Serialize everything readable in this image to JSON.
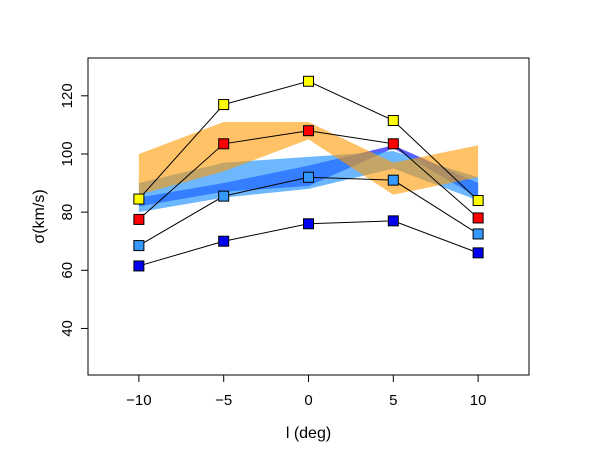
{
  "chart_data": {
    "type": "line",
    "title": "",
    "xlabel": "l (deg)",
    "ylabel": "σ(km/s)",
    "xlim": [
      -13,
      13
    ],
    "ylim": [
      24,
      133
    ],
    "x_ticks": [
      -10,
      -5,
      0,
      5,
      10
    ],
    "x_tick_labels": [
      "−10",
      "−5",
      "0",
      "5",
      "10"
    ],
    "y_ticks": [
      40,
      60,
      80,
      100,
      120
    ],
    "y_tick_labels": [
      "40",
      "60",
      "80",
      "100",
      "120"
    ],
    "grid": false,
    "legend": "none",
    "x": [
      -10,
      -5,
      0,
      5,
      10
    ],
    "series": [
      {
        "color": "#ffff00",
        "values": [
          84.5,
          117,
          125,
          111.5,
          84
        ]
      },
      {
        "color": "#ff0000",
        "values": [
          77.5,
          103.5,
          108,
          103.5,
          78
        ]
      },
      {
        "color": "#3399ff",
        "values": [
          68.5,
          85.5,
          92,
          91,
          72.5
        ]
      },
      {
        "color": "#0000ee",
        "values": [
          61.5,
          70,
          76,
          77,
          66
        ]
      }
    ],
    "bands": [
      {
        "color": "#3333ff",
        "opacity": 0.8,
        "lower": [
          82,
          87,
          89,
          102,
          85
        ],
        "upper": [
          85,
          90,
          96,
          103,
          90
        ]
      },
      {
        "color": "#1e90ff",
        "opacity": 0.65,
        "lower": [
          80,
          85,
          88,
          95,
          84
        ],
        "upper": [
          90,
          97,
          99,
          101,
          92
        ]
      },
      {
        "color": "#ff9900",
        "opacity": 0.6,
        "lower": [
          86,
          94,
          105,
          86,
          92
        ],
        "upper": [
          100,
          111,
          111,
          97,
          103
        ]
      }
    ]
  }
}
